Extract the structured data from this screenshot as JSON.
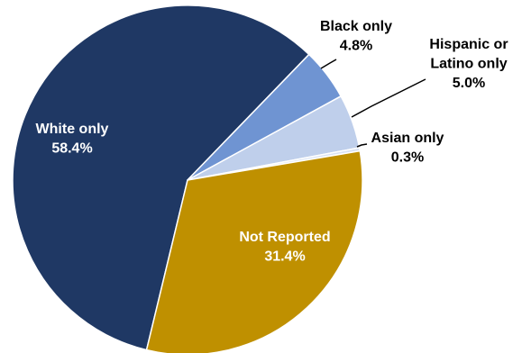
{
  "chart_data": {
    "type": "pie",
    "slices": [
      {
        "label": "White only",
        "value": 58.4,
        "value_label": "58.4%",
        "color": "#1f3864",
        "label_color": "#ffffff",
        "label_lines": [
          "White only"
        ],
        "label_inside": true
      },
      {
        "label": "Black only",
        "value": 4.8,
        "value_label": "4.8%",
        "color": "#6f94d2",
        "label_color": "#000000",
        "label_lines": [
          "Black only"
        ],
        "label_inside": false
      },
      {
        "label": "Hispanic or Latino only",
        "value": 5.0,
        "value_label": "5.0%",
        "color": "#bfcfeb",
        "label_color": "#000000",
        "label_lines": [
          "Hispanic or",
          "Latino only"
        ],
        "label_inside": false
      },
      {
        "label": "Asian only",
        "value": 0.3,
        "value_label": "0.3%",
        "color": "#d9e2f3",
        "label_color": "#000000",
        "label_lines": [
          "Asian only"
        ],
        "label_inside": false
      },
      {
        "label": "Not Reported",
        "value": 31.4,
        "value_label": "31.4%",
        "color": "#bf9000",
        "label_color": "#ffffff",
        "label_lines": [
          "Not Reported"
        ],
        "label_inside": true
      }
    ]
  }
}
